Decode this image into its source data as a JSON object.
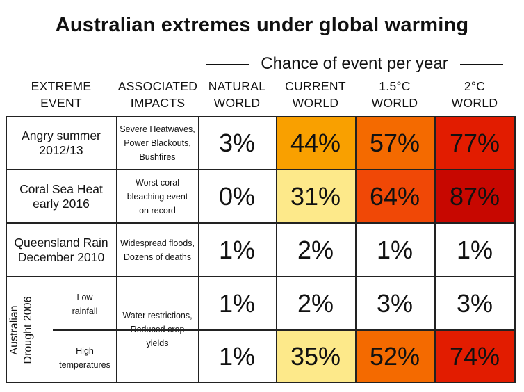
{
  "title": "Australian extremes under global warming",
  "chance_header": "Chance of event per year",
  "columns": [
    {
      "line1": "EXTREME",
      "line2": "EVENT"
    },
    {
      "line1": "ASSOCIATED",
      "line2": "IMPACTS"
    },
    {
      "line1": "NATURAL",
      "line2": "WORLD"
    },
    {
      "line1": "CURRENT",
      "line2": "WORLD"
    },
    {
      "line1": "1.5°C",
      "line2": "WORLD"
    },
    {
      "line1": "2°C",
      "line2": "WORLD"
    }
  ],
  "rows": [
    {
      "event": [
        "Angry summer",
        "2012/13"
      ],
      "impacts": [
        "Severe Heatwaves,",
        "Power Blackouts,",
        "Bushfires"
      ]
    },
    {
      "event": [
        "Coral Sea Heat",
        "early 2016"
      ],
      "impacts": [
        "Worst coral",
        "bleaching event",
        "on record"
      ]
    },
    {
      "event": [
        "Queensland Rain",
        "December 2010"
      ],
      "impacts": [
        "Widespread floods,",
        "Dozens of deaths"
      ]
    },
    {
      "event": [
        "Australian",
        "Drought 2006"
      ],
      "impacts": [
        "Water restrictions,",
        "Reduced crop",
        "yields"
      ],
      "sub_events": [
        [
          "Low",
          "rainfall"
        ],
        [
          "High",
          "temperatures"
        ]
      ]
    }
  ],
  "colors": {
    "light_yellow": "#fde98a",
    "orange": "#f9a000",
    "dark_orange": "#f46a00",
    "red_orange": "#f04806",
    "red": "#e21c00",
    "dark_red": "#c70700",
    "white": "#ffffff"
  },
  "chart_data": {
    "type": "table",
    "title": "Australian extremes under global warming",
    "column_group": "Chance of event per year",
    "columns": [
      "NATURAL WORLD",
      "CURRENT WORLD",
      "1.5°C WORLD",
      "2°C WORLD"
    ],
    "rows": [
      {
        "event": "Angry summer 2012/13",
        "values": [
          "3%",
          "44%",
          "57%",
          "77%"
        ],
        "colors": [
          "#ffffff",
          "#f9a000",
          "#f46a00",
          "#e21c00"
        ]
      },
      {
        "event": "Coral Sea Heat early 2016",
        "values": [
          "0%",
          "31%",
          "64%",
          "87%"
        ],
        "colors": [
          "#ffffff",
          "#fde98a",
          "#f04806",
          "#c70700"
        ]
      },
      {
        "event": "Queensland Rain December 2010",
        "values": [
          "1%",
          "2%",
          "1%",
          "1%"
        ],
        "colors": [
          "#ffffff",
          "#ffffff",
          "#ffffff",
          "#ffffff"
        ]
      },
      {
        "event": "Australian Drought 2006 Low rainfall",
        "values": [
          "1%",
          "2%",
          "3%",
          "3%"
        ],
        "colors": [
          "#ffffff",
          "#ffffff",
          "#ffffff",
          "#ffffff"
        ]
      },
      {
        "event": "Australian Drought 2006 High temperatures",
        "values": [
          "1%",
          "35%",
          "52%",
          "74%"
        ],
        "colors": [
          "#ffffff",
          "#fde98a",
          "#f46a00",
          "#e21c00"
        ]
      }
    ]
  }
}
